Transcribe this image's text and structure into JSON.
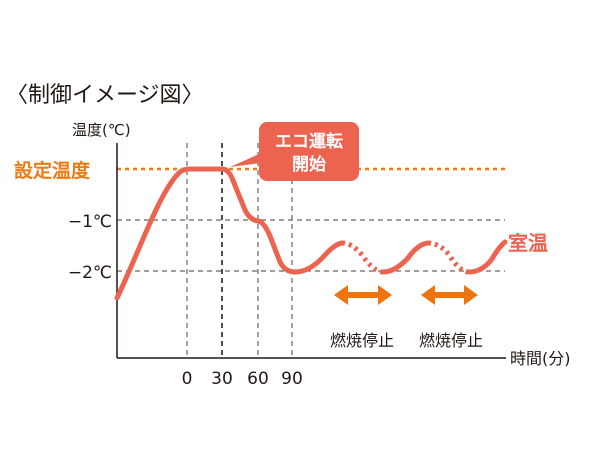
{
  "title": "〈制御イメージ図〉",
  "y_axis_label": "温度(℃)",
  "x_axis_label": "時間(分)",
  "y_labels": {
    "set": "設定温度",
    "minus1": "−1℃",
    "minus2": "−2℃"
  },
  "x_ticks": [
    "0",
    "30",
    "60",
    "90"
  ],
  "callout": {
    "line1": "エコ運転",
    "line2": "開始"
  },
  "series_label": "室温",
  "stop_label": "燃焼停止",
  "colors": {
    "curve": "#ec6450",
    "setpoint": "#ee7a14",
    "arrow": "#ee7410",
    "callout": "#ec6450",
    "text": "#231815",
    "grid": "#666666"
  }
}
